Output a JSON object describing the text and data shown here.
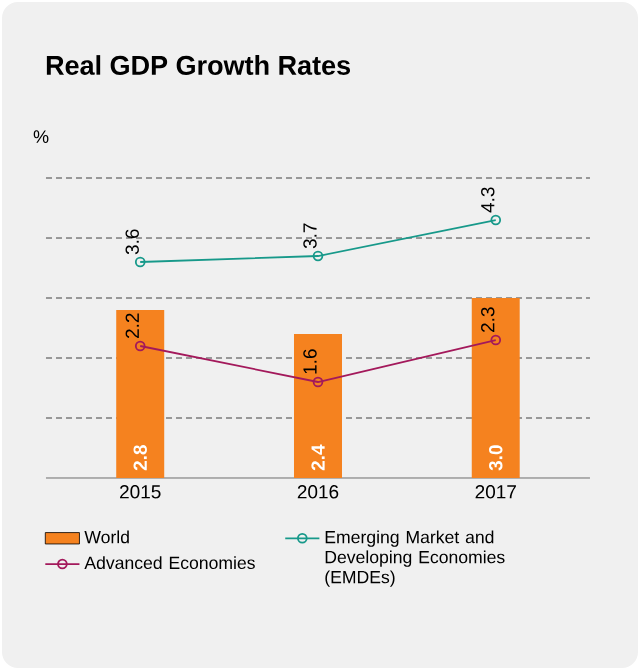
{
  "chart_data": {
    "type": "bar",
    "title": "Real GDP Growth Rates",
    "ylabel": "%",
    "categories": [
      "2015",
      "2016",
      "2017"
    ],
    "series": [
      {
        "name": "World",
        "color": "#f5821f",
        "values": [
          2.8,
          2.4,
          3.0
        ],
        "value_labels": [
          "2.8",
          "2.4",
          "3.0"
        ]
      },
      {
        "name": "Emerging Market and Developing Economies (EMDEs)",
        "type": "line",
        "color": "#17998a",
        "values": [
          3.6,
          3.7,
          4.3
        ],
        "value_labels": [
          "3.6",
          "3.7",
          "4.3"
        ]
      },
      {
        "name": "Advanced Economies",
        "type": "line",
        "color": "#a3195b",
        "values": [
          2.2,
          1.6,
          2.3
        ],
        "value_labels": [
          "2.2",
          "1.6",
          "2.3"
        ]
      }
    ],
    "ylim": [
      0,
      5
    ],
    "yticks": [
      {
        "value": 1,
        "label": null
      },
      {
        "value": 2,
        "label": null
      },
      {
        "value": 3,
        "label": null
      },
      {
        "value": 4,
        "label": null
      },
      {
        "value": 5,
        "label": null
      }
    ],
    "grid": "y",
    "legend": "bottom",
    "tick_labels": "x",
    "marker": "circle"
  }
}
